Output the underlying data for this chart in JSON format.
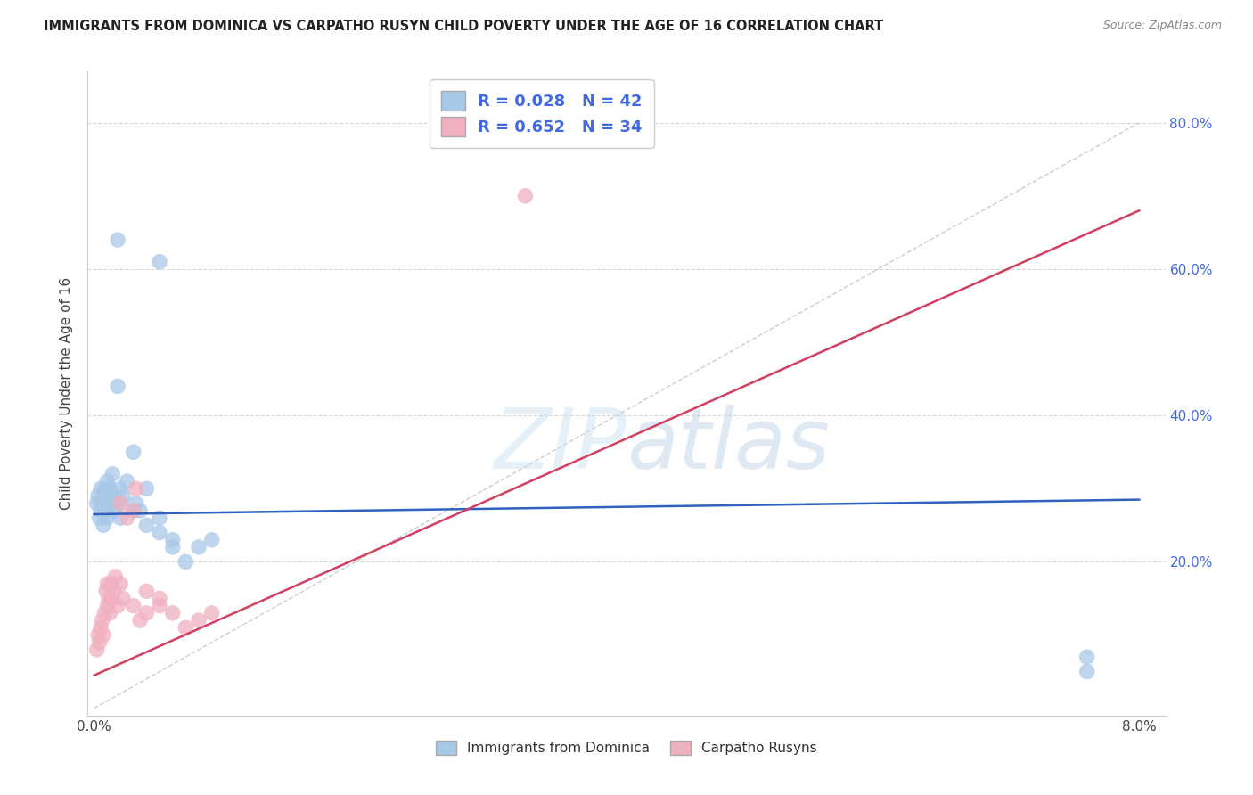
{
  "title": "IMMIGRANTS FROM DOMINICA VS CARPATHO RUSYN CHILD POVERTY UNDER THE AGE OF 16 CORRELATION CHART",
  "source": "Source: ZipAtlas.com",
  "ylabel": "Child Poverty Under the Age of 16",
  "legend1_R": "0.028",
  "legend1_N": "42",
  "legend2_R": "0.652",
  "legend2_N": "34",
  "legend_text_color": "#4169E1",
  "dominica_color": "#a8c8e8",
  "dominica_line_color": "#3060c0",
  "rusyn_color": "#f0b0c0",
  "rusyn_line_color": "#d04060",
  "diagonal_color": "#cccccc",
  "watermark_color": "#ddeeff",
  "dominica_x": [
    0.0002,
    0.0003,
    0.0004,
    0.0005,
    0.0005,
    0.0006,
    0.0007,
    0.0008,
    0.0008,
    0.0009,
    0.001,
    0.001,
    0.001,
    0.0012,
    0.0013,
    0.0014,
    0.0015,
    0.0015,
    0.0016,
    0.0018,
    0.002,
    0.002,
    0.002,
    0.0022,
    0.0025,
    0.003,
    0.003,
    0.0032,
    0.0035,
    0.004,
    0.004,
    0.005,
    0.005,
    0.006,
    0.006,
    0.007,
    0.008,
    0.009,
    0.0018,
    0.005,
    0.076,
    0.076
  ],
  "dominica_y": [
    0.28,
    0.29,
    0.26,
    0.27,
    0.3,
    0.28,
    0.25,
    0.27,
    0.3,
    0.27,
    0.29,
    0.31,
    0.26,
    0.3,
    0.28,
    0.32,
    0.27,
    0.29,
    0.28,
    0.44,
    0.28,
    0.3,
    0.26,
    0.29,
    0.31,
    0.27,
    0.35,
    0.28,
    0.27,
    0.25,
    0.3,
    0.24,
    0.26,
    0.22,
    0.23,
    0.2,
    0.22,
    0.23,
    0.64,
    0.61,
    0.07,
    0.05
  ],
  "rusyn_x": [
    0.0002,
    0.0003,
    0.0004,
    0.0005,
    0.0006,
    0.0007,
    0.0008,
    0.0009,
    0.001,
    0.001,
    0.0011,
    0.0012,
    0.0013,
    0.0014,
    0.0015,
    0.0016,
    0.0018,
    0.002,
    0.002,
    0.0022,
    0.0025,
    0.003,
    0.003,
    0.0032,
    0.0035,
    0.004,
    0.004,
    0.005,
    0.005,
    0.006,
    0.007,
    0.008,
    0.009,
    0.033
  ],
  "rusyn_y": [
    0.08,
    0.1,
    0.09,
    0.11,
    0.12,
    0.1,
    0.13,
    0.16,
    0.14,
    0.17,
    0.15,
    0.13,
    0.17,
    0.15,
    0.16,
    0.18,
    0.14,
    0.17,
    0.28,
    0.15,
    0.26,
    0.27,
    0.14,
    0.3,
    0.12,
    0.13,
    0.16,
    0.14,
    0.15,
    0.13,
    0.11,
    0.12,
    0.13,
    0.7
  ],
  "xlim": [
    0.0,
    0.082
  ],
  "ylim": [
    0.0,
    0.87
  ],
  "x_ticks": [
    0.0,
    0.01,
    0.02,
    0.03,
    0.04,
    0.05,
    0.06,
    0.07,
    0.08
  ],
  "y_ticks": [
    0.0,
    0.2,
    0.4,
    0.6,
    0.8
  ],
  "dominica_line_x0": 0.0,
  "dominica_line_x1": 0.08,
  "dominica_line_y0": 0.265,
  "dominica_line_y1": 0.285,
  "rusyn_line_x0": 0.0,
  "rusyn_line_x1": 0.08,
  "rusyn_line_y0": 0.045,
  "rusyn_line_y1": 0.68
}
